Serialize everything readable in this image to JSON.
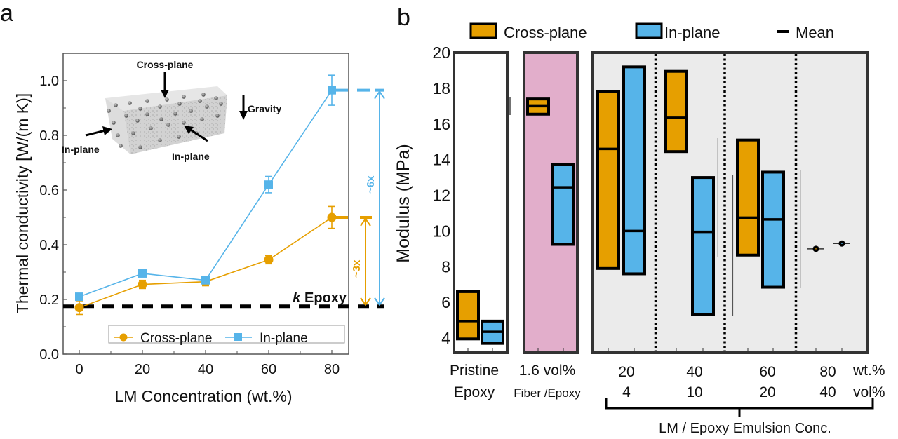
{
  "colors": {
    "cross": "#E69F00",
    "in": "#56B4E9",
    "fiber_bg": "#E2AECB",
    "emulsion_bg": "#EBEBEB",
    "frame": "#333333"
  },
  "chart_data": [
    {
      "panel_label": "a",
      "type": "line",
      "xlabel": "LM Concentration (wt.%)",
      "ylabel": "Thermal conductivity [W/(m K)]",
      "x": [
        0,
        20,
        40,
        60,
        80
      ],
      "xticks": [
        "0",
        "20",
        "40",
        "60",
        "80"
      ],
      "yticks": [
        "0.0",
        "0.2",
        "0.4",
        "0.6",
        "0.8",
        "1.0"
      ],
      "xlim": [
        -5,
        85
      ],
      "ylim": [
        0,
        1.1
      ],
      "series": [
        {
          "name": "Cross-plane",
          "marker": "circle",
          "values": [
            0.17,
            0.255,
            0.265,
            0.345,
            0.5
          ],
          "errors": [
            0.025,
            0.015,
            0.015,
            0.015,
            0.04
          ]
        },
        {
          "name": "In-plane",
          "marker": "square",
          "values": [
            0.21,
            0.295,
            0.27,
            0.62,
            0.965
          ],
          "errors": [
            0.01,
            0.01,
            0.01,
            0.03,
            0.055
          ]
        }
      ],
      "reference_line": {
        "label_italic": "k",
        "label": " Epoxy",
        "value": 0.175
      },
      "annotations": [
        {
          "text": "~3x",
          "series": "Cross-plane",
          "from": 0.175,
          "to": 0.5
        },
        {
          "text": "~6x",
          "series": "In-plane",
          "from": 0.175,
          "to": 0.965
        }
      ],
      "inset": {
        "labels": [
          "Cross-plane",
          "Gravity",
          "In-plane",
          "In-plane"
        ]
      },
      "legend": {
        "placement": "bottom-right",
        "entries": [
          "Cross-plane",
          "In-plane"
        ]
      }
    },
    {
      "panel_label": "b",
      "type": "bar",
      "subtype": "floating-range-with-mean",
      "ylabel": "Modulus (MPa)",
      "ylim": [
        3.2,
        20
      ],
      "yticks": [
        "4",
        "6",
        "8",
        "10",
        "12",
        "14",
        "16",
        "18",
        "20"
      ],
      "legend": {
        "placement": "top",
        "entries": [
          "Cross-plane",
          "In-plane",
          "Mean"
        ]
      },
      "groups": [
        {
          "label_line1": "Pristine",
          "label_line2": "Epoxy",
          "background": "white",
          "cross": {
            "min": 3.95,
            "max": 6.6,
            "mean": 4.95
          },
          "in": {
            "min": 3.7,
            "max": 4.95,
            "mean": 4.35
          }
        },
        {
          "label_line1": "1.6 vol%",
          "label_line2": "Fiber /Epoxy",
          "background": "fiber",
          "cross": {
            "min": 16.55,
            "max": 17.4,
            "mean": 17.0
          },
          "in": {
            "min": 9.25,
            "max": 13.75,
            "mean": 12.45
          }
        },
        {
          "label_line1": "20",
          "label_line2": "4",
          "background": "emulsion",
          "cross": {
            "min": 7.9,
            "max": 17.8,
            "mean": 14.6
          },
          "in": {
            "min": 7.6,
            "max": 19.2,
            "mean": 10.0
          }
        },
        {
          "label_line1": "40",
          "label_line2": "10",
          "background": "emulsion",
          "cross": {
            "min": 14.45,
            "max": 18.95,
            "mean": 16.35
          },
          "in": {
            "min": 5.3,
            "max": 13.0,
            "mean": 9.95
          }
        },
        {
          "label_line1": "60",
          "label_line2": "20",
          "background": "emulsion",
          "cross": {
            "min": 8.65,
            "max": 15.1,
            "mean": 10.75
          },
          "in": {
            "min": 6.85,
            "max": 13.3,
            "mean": 10.65
          }
        },
        {
          "label_line1": "80",
          "label_line2": "40",
          "background": "emulsion",
          "cross": {
            "point": 9.0
          },
          "in": {
            "point": 9.3
          }
        }
      ],
      "unit_labels": {
        "line1": "wt.%",
        "line2": "vol%"
      },
      "bracket_label": "LM / Epoxy Emulsion Conc."
    }
  ]
}
